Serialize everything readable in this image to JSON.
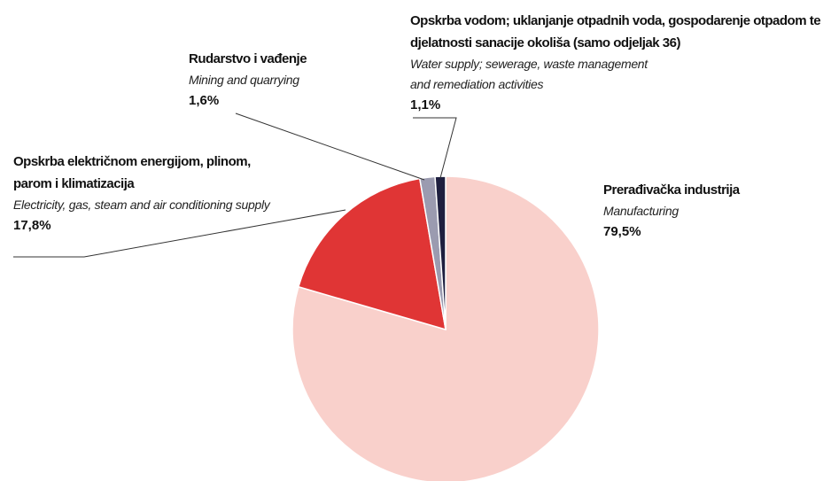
{
  "chart_data": {
    "type": "pie",
    "categories": [
      "Prerađivačka industrija",
      "Opskrba električnom energijom, plinom, parom i klimatizacija",
      "Rudarstvo i vađenje",
      "Opskrba vodom; uklanjanje otpadnih voda, gospodarenje otpadom te djelatnosti sanacije okoliša (samo odjeljak 36)"
    ],
    "categories_en": [
      "Manufacturing",
      "Electricity, gas, steam and air conditioning supply",
      "Mining and quarrying",
      "Water supply; sewerage, waste management and remediation activities"
    ],
    "values": [
      79.5,
      17.8,
      1.6,
      1.1
    ],
    "value_labels": [
      "79,5%",
      "17,8%",
      "1,6%",
      "1,1%"
    ],
    "colors": [
      "#f9d0cb",
      "#e03535",
      "#9b9bb0",
      "#1e1f3f"
    ]
  }
}
